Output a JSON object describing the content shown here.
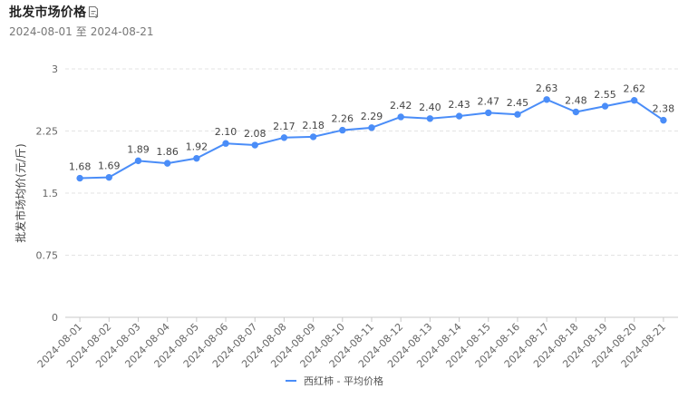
{
  "header": {
    "title": "批发市场价格",
    "date_from": "2024-08-01",
    "date_sep": "至",
    "date_to": "2024-08-21",
    "export_icon": "export-document-icon"
  },
  "chart_data": {
    "type": "line",
    "ylabel": "批发市场均价(元/斤)",
    "xlabel": "",
    "ylim": [
      0,
      3
    ],
    "yticks": [
      0,
      0.75,
      1.5,
      2.25,
      3
    ],
    "ytick_labels": [
      "0",
      "0.75",
      "1.5",
      "2.25",
      "3"
    ],
    "grid": "horizontal-dashed",
    "legend_position": "bottom-center",
    "x": [
      "2024-08-01",
      "2024-08-02",
      "2024-08-03",
      "2024-08-04",
      "2024-08-05",
      "2024-08-06",
      "2024-08-07",
      "2024-08-08",
      "2024-08-09",
      "2024-08-10",
      "2024-08-11",
      "2024-08-12",
      "2024-08-13",
      "2024-08-14",
      "2024-08-15",
      "2024-08-16",
      "2024-08-17",
      "2024-08-18",
      "2024-08-19",
      "2024-08-20",
      "2024-08-21"
    ],
    "series": [
      {
        "name": "西红柿 - 平均价格",
        "color": "#4a8df8",
        "values": [
          1.68,
          1.69,
          1.89,
          1.86,
          1.92,
          2.1,
          2.08,
          2.17,
          2.18,
          2.26,
          2.29,
          2.42,
          2.4,
          2.43,
          2.47,
          2.45,
          2.63,
          2.48,
          2.55,
          2.62,
          2.38
        ],
        "labels": [
          "1.68",
          "1.69",
          "1.89",
          "1.86",
          "1.92",
          "2.10",
          "2.08",
          "2.17",
          "2.18",
          "2.26",
          "2.29",
          "2.42",
          "2.40",
          "2.43",
          "2.47",
          "2.45",
          "2.63",
          "2.48",
          "2.55",
          "2.62",
          "2.38"
        ]
      }
    ]
  }
}
